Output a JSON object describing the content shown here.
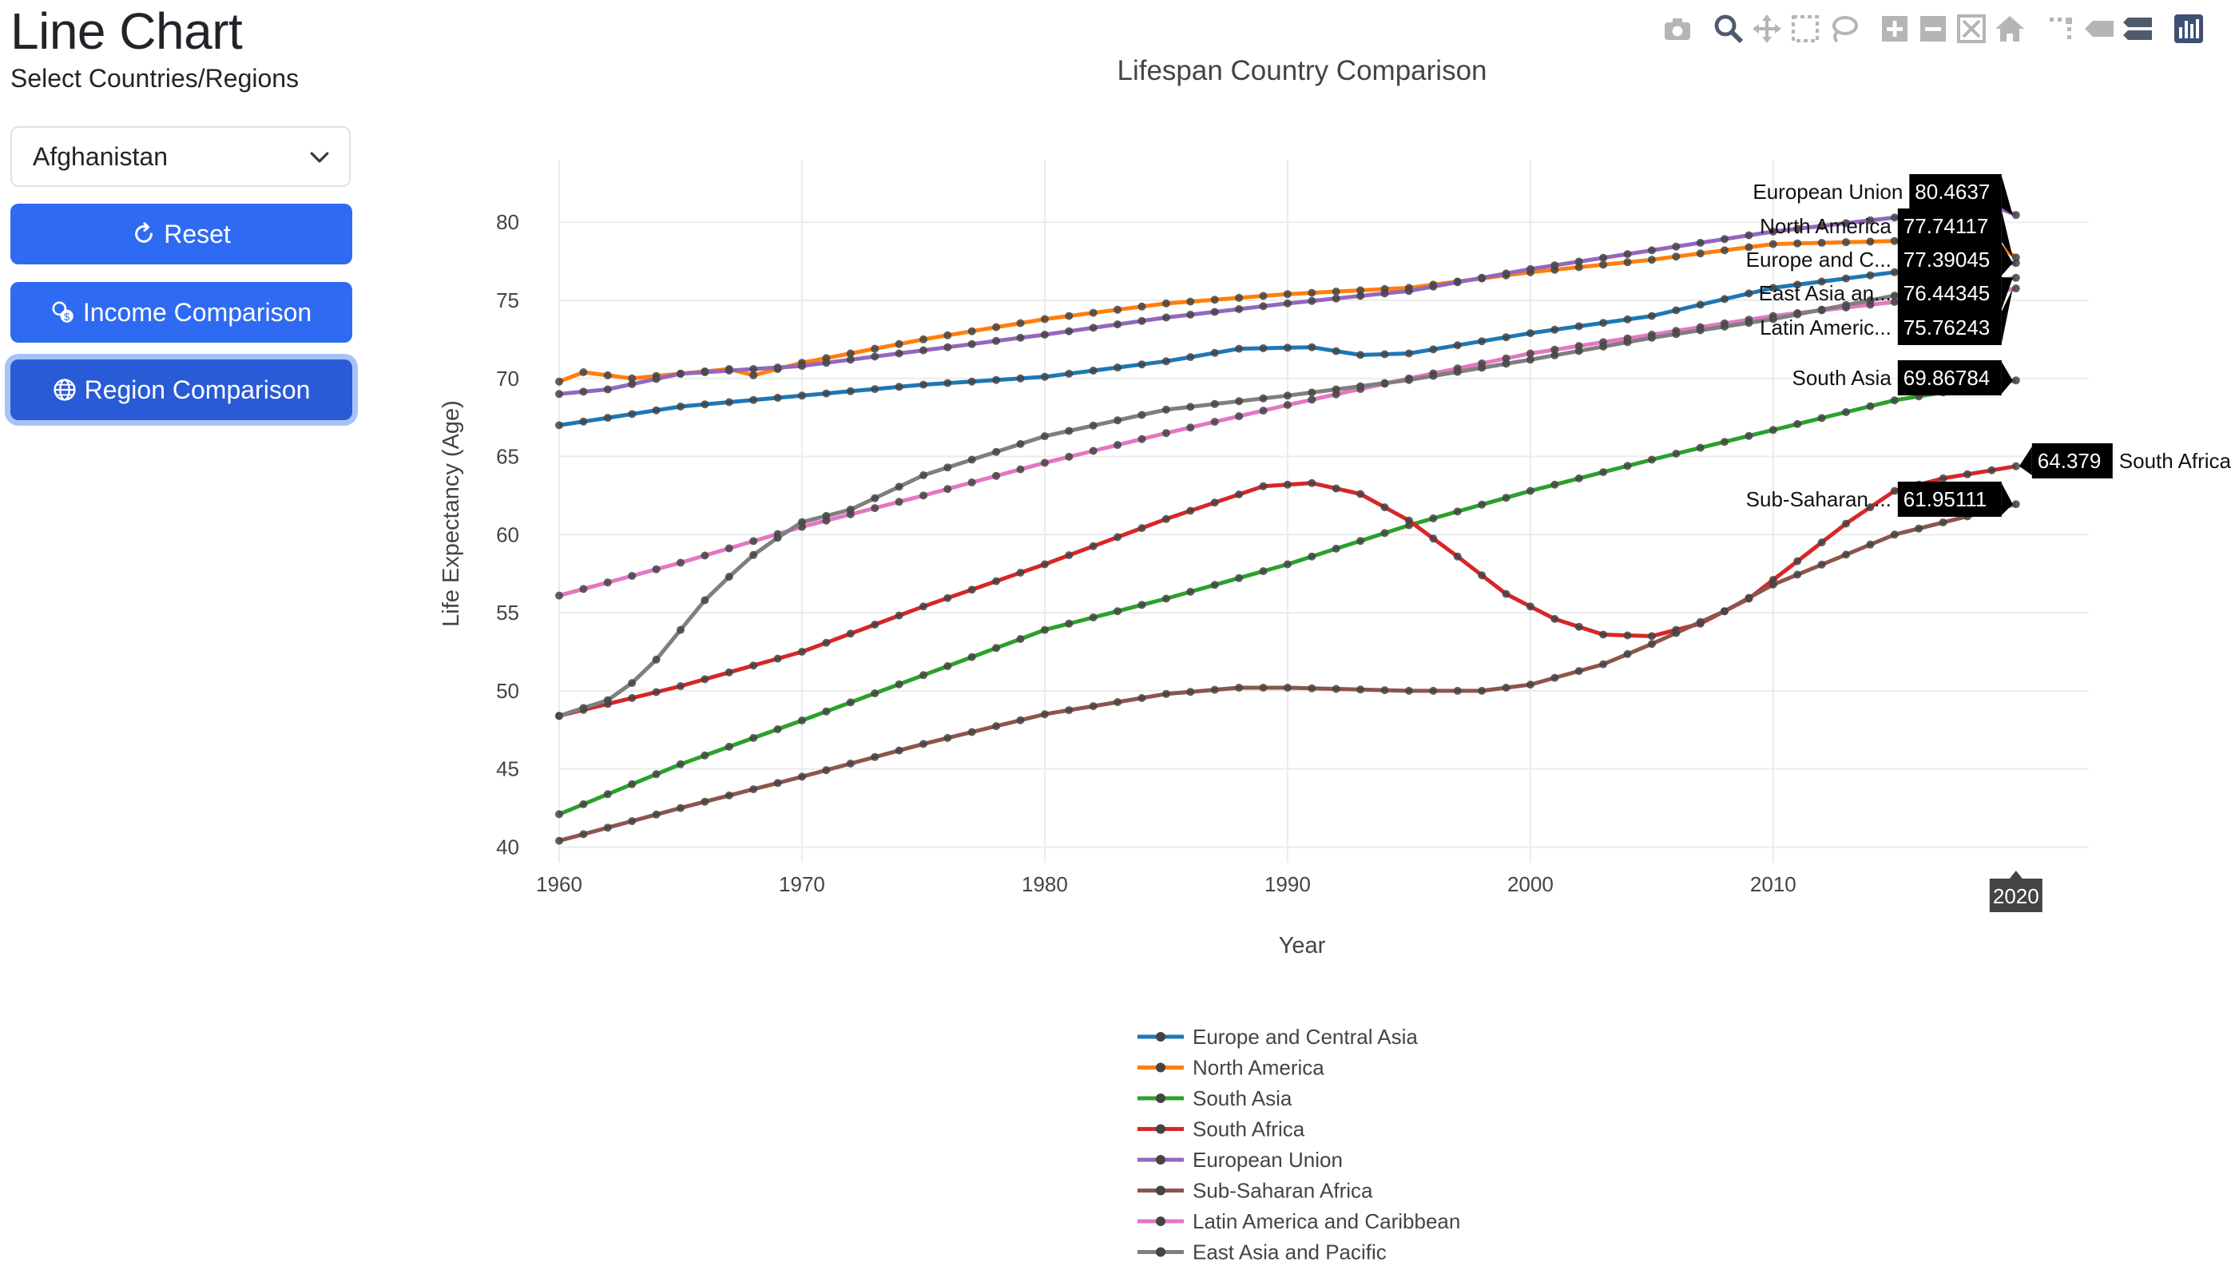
{
  "page": {
    "title": "Line Chart",
    "subtitle": "Select Countries/Regions",
    "dropdown_value": "Afghanistan",
    "buttons": {
      "reset": "Reset",
      "income": "Income Comparison",
      "region": "Region Comparison"
    }
  },
  "modebar": [
    "camera-icon",
    "zoom-icon",
    "pan-icon",
    "box-select-icon",
    "lasso-icon",
    "zoom-in-icon",
    "zoom-out-icon",
    "autoscale-icon",
    "reset-axes-icon",
    "spike-lines-icon",
    "hover-closest-icon",
    "hover-compare-icon",
    "plotly-logo-icon"
  ],
  "chart_data": {
    "type": "line",
    "title": "Lifespan Country Comparison",
    "xlabel": "Year",
    "ylabel": "Life Expectancy (Age)",
    "xlim": [
      1960,
      2023
    ],
    "ylim": [
      39,
      84
    ],
    "xticks": [
      1960,
      1970,
      1980,
      1990,
      2000,
      2010
    ],
    "yticks": [
      40,
      45,
      50,
      55,
      60,
      65,
      70,
      75,
      80
    ],
    "grid": true,
    "legend_position": "bottom-center",
    "hover_year": "2020",
    "series": [
      {
        "name": "Europe and Central Asia",
        "color": "#1f77b4",
        "hover": "Europe and C...",
        "last": "77.39045",
        "x": [
          1960,
          1965,
          1970,
          1975,
          1980,
          1985,
          1988,
          1991,
          1993,
          1995,
          2000,
          2005,
          2010,
          2015,
          2020
        ],
        "y": [
          67.0,
          68.2,
          68.9,
          69.6,
          70.1,
          71.1,
          71.9,
          72.0,
          71.5,
          71.6,
          72.9,
          74.0,
          75.8,
          76.8,
          77.39
        ]
      },
      {
        "name": "North America",
        "color": "#ff7f0e",
        "hover": "North America",
        "last": "77.74117",
        "x": [
          1960,
          1961,
          1963,
          1965,
          1967,
          1968,
          1970,
          1975,
          1980,
          1985,
          1990,
          1995,
          2000,
          2005,
          2010,
          2015,
          2019,
          2020
        ],
        "y": [
          69.8,
          70.4,
          70.0,
          70.3,
          70.6,
          70.2,
          71.0,
          72.5,
          73.8,
          74.8,
          75.4,
          75.8,
          76.8,
          77.6,
          78.6,
          78.8,
          78.9,
          77.74
        ]
      },
      {
        "name": "South Asia",
        "color": "#2ca02c",
        "hover": "South Asia",
        "last": "69.86784",
        "x": [
          1960,
          1965,
          1970,
          1975,
          1980,
          1985,
          1990,
          1995,
          2000,
          2005,
          2010,
          2015,
          2020
        ],
        "y": [
          42.1,
          45.3,
          48.1,
          51.0,
          53.9,
          55.9,
          58.1,
          60.6,
          62.8,
          64.8,
          66.7,
          68.6,
          69.87
        ]
      },
      {
        "name": "South Africa",
        "color": "#d62728",
        "hover": "South Africa",
        "last": "64.379",
        "x": [
          1960,
          1965,
          1970,
          1975,
          1980,
          1985,
          1989,
          1991,
          1993,
          1995,
          1997,
          1999,
          2001,
          2003,
          2005,
          2007,
          2009,
          2011,
          2013,
          2015,
          2017,
          2020
        ],
        "y": [
          48.4,
          50.3,
          52.5,
          55.4,
          58.1,
          61.0,
          63.1,
          63.3,
          62.6,
          60.9,
          58.6,
          56.2,
          54.6,
          53.6,
          53.5,
          54.3,
          55.9,
          58.3,
          60.7,
          62.8,
          63.6,
          64.38
        ]
      },
      {
        "name": "European Union",
        "color": "#9467bd",
        "hover": "European Union",
        "last": "80.4637",
        "x": [
          1960,
          1962,
          1965,
          1970,
          1975,
          1980,
          1985,
          1990,
          1995,
          2000,
          2005,
          2010,
          2015,
          2019,
          2020
        ],
        "y": [
          69.0,
          69.3,
          70.3,
          70.8,
          71.8,
          72.8,
          73.9,
          74.8,
          75.6,
          77.0,
          78.2,
          79.4,
          80.3,
          81.1,
          80.46
        ]
      },
      {
        "name": "Sub-Saharan Africa",
        "color": "#8c564b",
        "hover": "Sub-Saharan ...",
        "last": "61.95111",
        "x": [
          1960,
          1965,
          1970,
          1975,
          1980,
          1985,
          1988,
          1990,
          1995,
          1998,
          2000,
          2003,
          2005,
          2008,
          2010,
          2015,
          2020
        ],
        "y": [
          40.4,
          42.5,
          44.5,
          46.6,
          48.5,
          49.8,
          50.2,
          50.2,
          50.0,
          50.0,
          50.4,
          51.7,
          53.0,
          55.1,
          56.8,
          60.0,
          61.95
        ]
      },
      {
        "name": "Latin America and Caribbean",
        "color": "#e377c2",
        "hover": "Latin Americ...",
        "last": "75.76243",
        "x": [
          1960,
          1965,
          1970,
          1975,
          1980,
          1985,
          1990,
          1995,
          2000,
          2005,
          2010,
          2015,
          2019,
          2020
        ],
        "y": [
          56.1,
          58.2,
          60.5,
          62.5,
          64.6,
          66.5,
          68.3,
          70.0,
          71.6,
          72.8,
          74.0,
          74.9,
          75.5,
          75.76
        ]
      },
      {
        "name": "East Asia and Pacific",
        "color": "#7f7f7f",
        "hover": "East Asia an...",
        "last": "76.44345",
        "x": [
          1960,
          1962,
          1963,
          1964,
          1965,
          1966,
          1967,
          1968,
          1969,
          1970,
          1972,
          1975,
          1980,
          1985,
          1990,
          1995,
          2000,
          2005,
          2010,
          2015,
          2020
        ],
        "y": [
          48.4,
          49.4,
          50.5,
          52.0,
          53.9,
          55.8,
          57.3,
          58.7,
          59.8,
          60.8,
          61.6,
          63.8,
          66.3,
          68.0,
          68.9,
          69.9,
          71.2,
          72.6,
          73.8,
          75.3,
          76.44
        ]
      }
    ]
  }
}
